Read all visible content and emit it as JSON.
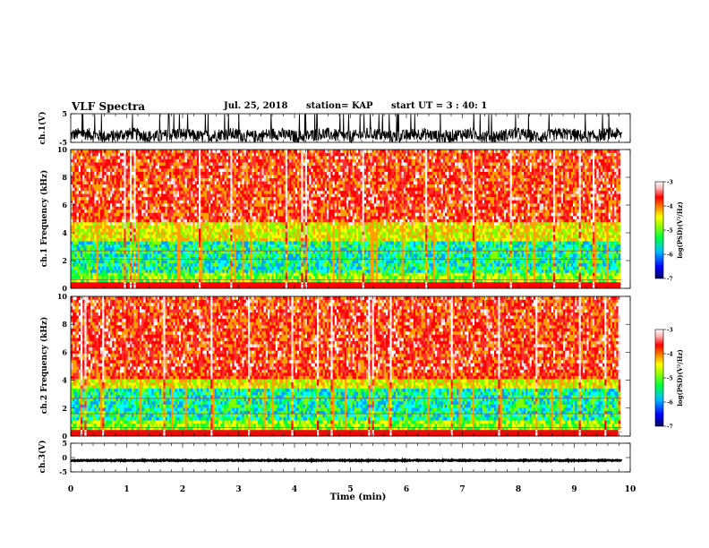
{
  "header": {
    "title": "VLF Spectra",
    "date": "Jul. 25, 2018",
    "station": "station= KAP",
    "start": "start UT =  3 : 40: 1"
  },
  "colors": {
    "spectrum": [
      "#000080",
      "#0000ff",
      "#00a0ff",
      "#00ffff",
      "#00ff40",
      "#80ff00",
      "#ffff00",
      "#ffa000",
      "#ff3030",
      "#ff0000",
      "#ffc8c8",
      "#ffffff"
    ],
    "background_line": "#000000"
  },
  "chart_data": [
    {
      "type": "line",
      "name": "ch1-waveform",
      "ylabel": "ch.1(V)",
      "ylim": [
        -5,
        5
      ],
      "yticks": [
        "5",
        "-5"
      ],
      "xlim": [
        0,
        10
      ],
      "description_values": {
        "mean": -2.5,
        "amplitude": 2.2
      }
    },
    {
      "type": "heatmap",
      "name": "ch1-spectrogram",
      "ylabel": "ch.1 Frequency (kHz)",
      "ylim": [
        0,
        10
      ],
      "yticks": [
        "0",
        "2",
        "4",
        "6",
        "8",
        "10"
      ],
      "xlim": [
        0,
        9.85
      ],
      "colorbar": {
        "label": "log(PSD)(V²/Hz)",
        "range": [
          -7,
          -3
        ],
        "ticks": [
          "-3",
          "-4",
          "-5",
          "-6",
          "-7"
        ]
      }
    },
    {
      "type": "heatmap",
      "name": "ch2-spectrogram",
      "ylabel": "ch.2 Frequency (kHz)",
      "ylim": [
        0,
        10
      ],
      "yticks": [
        "0",
        "2",
        "4",
        "6",
        "8",
        "10"
      ],
      "xlim": [
        0,
        9.85
      ],
      "colorbar": {
        "label": "log(PSD)(V²/Hz)",
        "range": [
          -7,
          -3
        ],
        "ticks": [
          "-3",
          "-4",
          "-5",
          "-6",
          "-7"
        ]
      }
    },
    {
      "type": "line",
      "name": "ch3-waveform",
      "ylabel": "ch.3(V)",
      "ylim": [
        -5,
        5
      ],
      "yticks": [
        "5",
        "0",
        "-5"
      ],
      "xlim": [
        0,
        10
      ],
      "description_values": {
        "mean": -1.0,
        "amplitude": 0.3
      }
    }
  ],
  "xaxis": {
    "label": "Time (min)",
    "ticks": [
      "0",
      "1",
      "2",
      "3",
      "4",
      "5",
      "6",
      "7",
      "8",
      "9",
      "10"
    ],
    "range": [
      0,
      10
    ]
  }
}
